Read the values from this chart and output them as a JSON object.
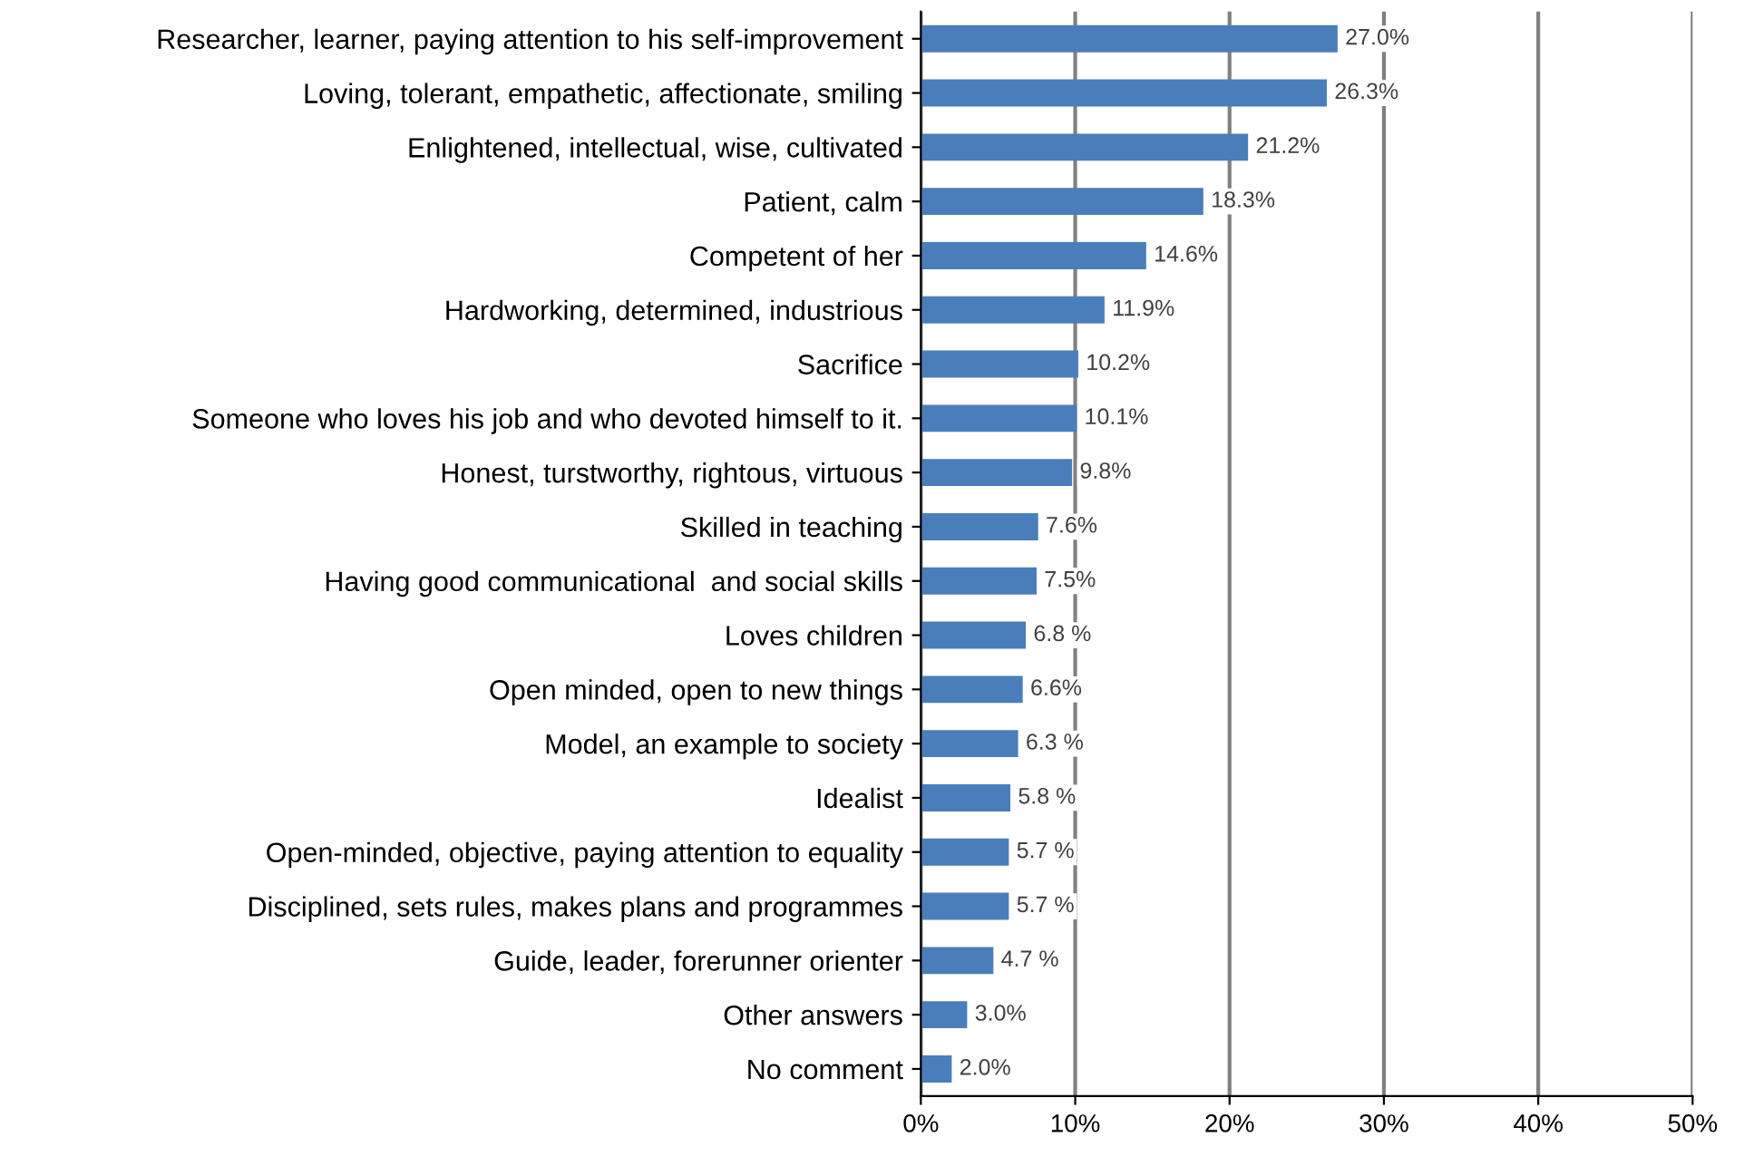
{
  "chart_data": {
    "type": "bar",
    "orientation": "horizontal",
    "categories": [
      "Researcher, learner, paying attention to his self-improvement",
      "Loving, tolerant, empathetic, affectionate, smiling",
      "Enlightened, intellectual, wise, cultivated",
      "Patient, calm",
      "Competent of her",
      "Hardworking, determined, industrious",
      "Sacrifice",
      "Someone who loves his job and who devoted himself to it.",
      "Honest, turstworthy, rightous, virtuous",
      "Skilled in teaching",
      "Having good communicational  and social skills",
      "Loves children",
      "Open minded, open to new things",
      "Model, an example to society",
      "Idealist",
      "Open-minded, objective, paying attention to equality",
      "Disciplined, sets rules, makes plans and programmes",
      "Guide, leader, forerunner orienter",
      "Other answers",
      "No comment"
    ],
    "values": [
      27.0,
      26.3,
      21.2,
      18.3,
      14.6,
      11.9,
      10.2,
      10.1,
      9.8,
      7.6,
      7.5,
      6.8,
      6.6,
      6.3,
      5.8,
      5.7,
      5.7,
      4.7,
      3.0,
      2.0
    ],
    "value_labels": [
      "27.0%",
      "26.3%",
      "21.2%",
      "18.3%",
      "14.6%",
      "11.9%",
      "10.2%",
      "10.1%",
      "9.8%",
      "7.6%",
      "7.5%",
      "6.8 %",
      "6.6%",
      "6.3 %",
      "5.8 %",
      "5.7 %",
      "5.7 %",
      "4.7 %",
      "3.0%",
      "2.0%"
    ],
    "color": "#4a7ebb",
    "xlim": [
      0,
      50
    ],
    "xticks": [
      {
        "value": 0,
        "label": "0%"
      },
      {
        "value": 10,
        "label": "10%"
      },
      {
        "value": 20,
        "label": "20%"
      },
      {
        "value": 30,
        "label": "30%"
      },
      {
        "value": 40,
        "label": "40%"
      },
      {
        "value": 50,
        "label": "50%"
      }
    ],
    "grid": "x"
  }
}
